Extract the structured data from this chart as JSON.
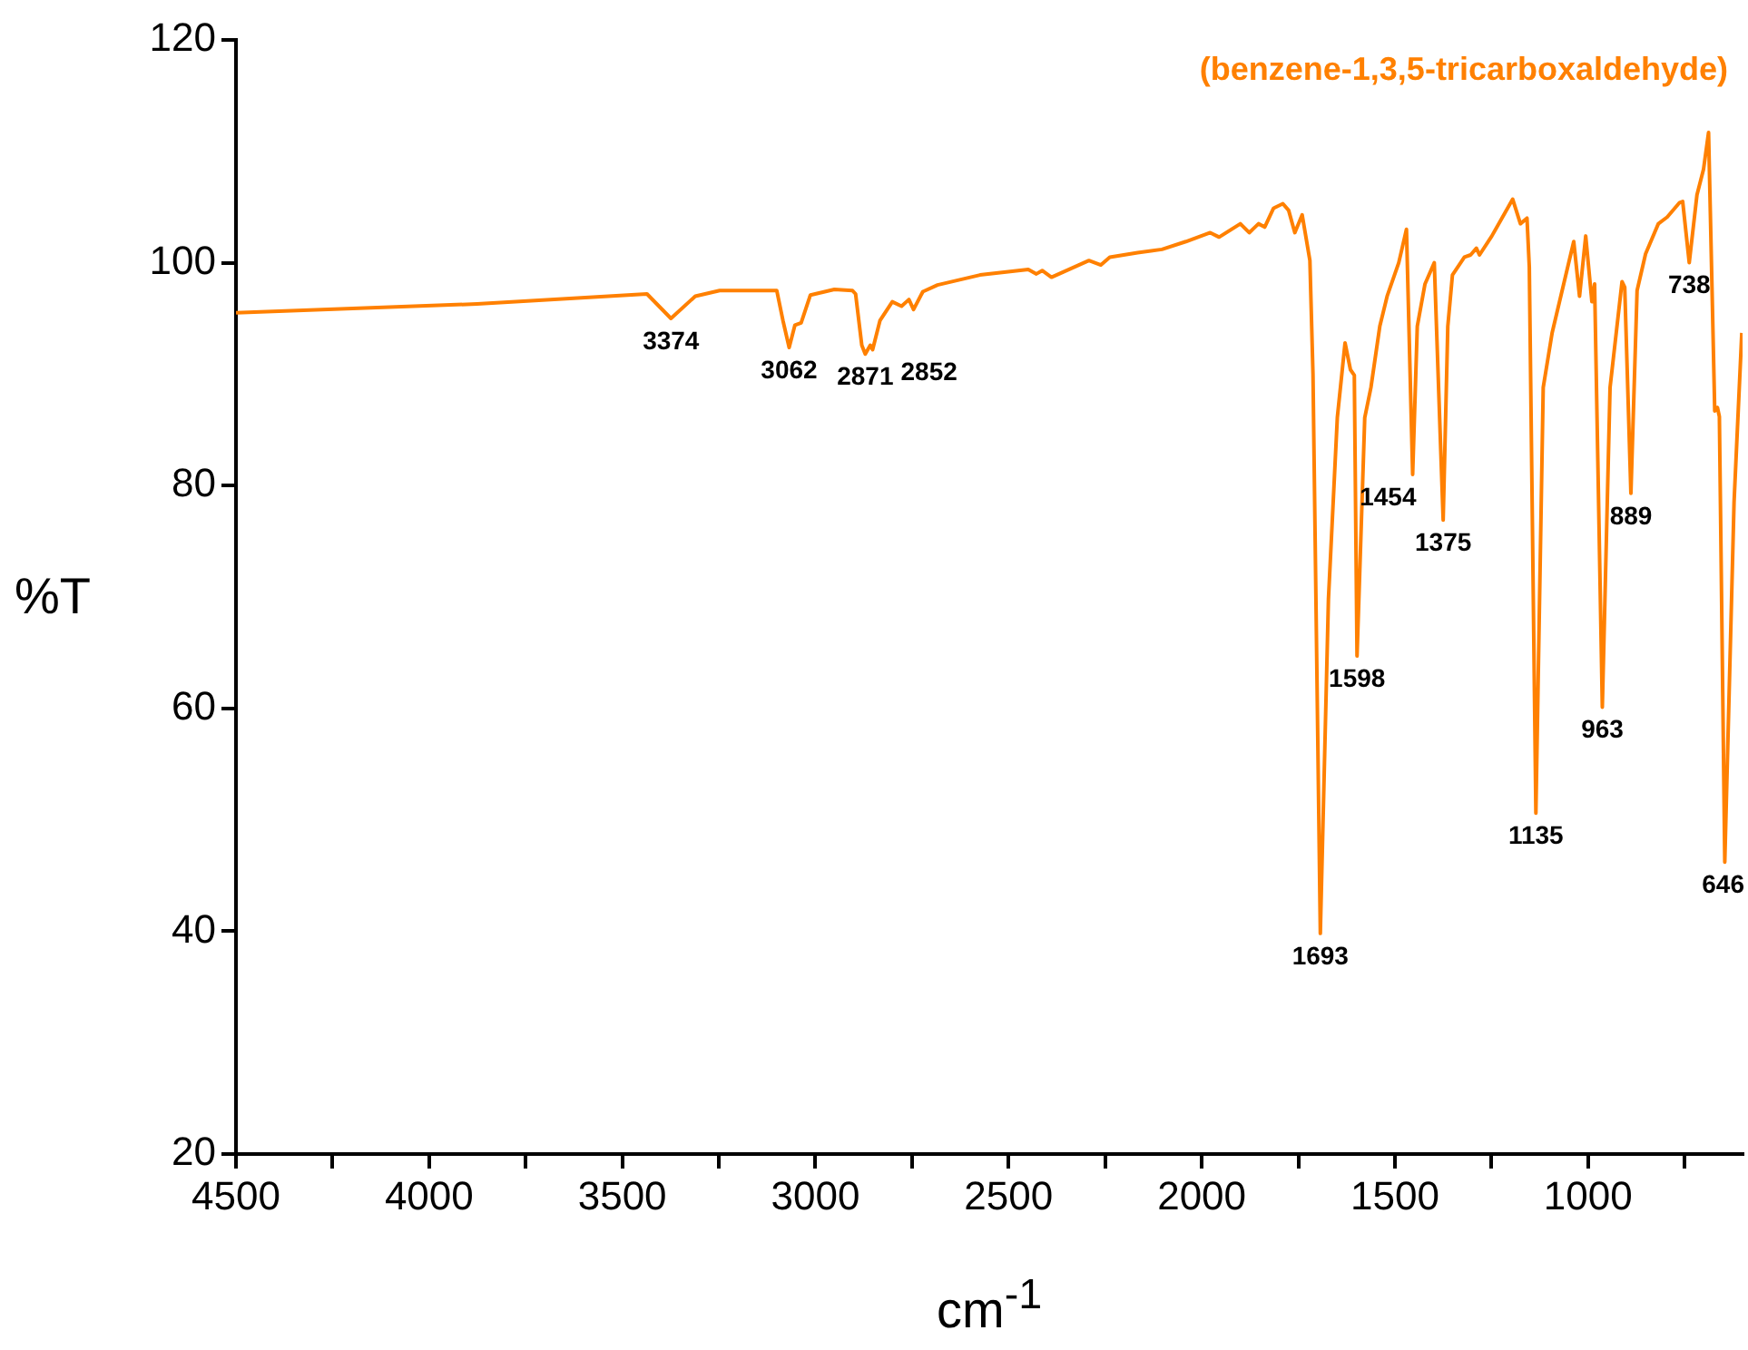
{
  "chart_data": {
    "type": "line",
    "xlabel": "cm$^{-1}$",
    "ylabel": "%T",
    "xlim": [
      4500,
      600
    ],
    "ylim": [
      20,
      120
    ],
    "xticks": [
      4500,
      {
        "value": 4250,
        "label": null
      },
      4000,
      {
        "value": 3750,
        "label": null
      },
      3500,
      {
        "value": 3250,
        "label": null
      },
      3000,
      {
        "value": 2750,
        "label": null
      },
      2500,
      {
        "value": 2250,
        "label": null
      },
      2000,
      {
        "value": 1750,
        "label": null
      },
      1500,
      {
        "value": 1250,
        "label": null
      },
      1000,
      {
        "value": 750,
        "label": null
      }
    ],
    "yticks": [
      20,
      40,
      60,
      80,
      100,
      120
    ],
    "grid": false,
    "marker": "none",
    "line_style": "solid",
    "series": [
      {
        "name": "(benzene-1,3,5-tricarboxaldehyde)",
        "color": "#ff8000",
        "x": [
          4500,
          3876,
          3436,
          3374,
          3311,
          3248,
          3100,
          3084,
          3068,
          3053,
          3037,
          3013,
          2951,
          2904,
          2896,
          2880,
          2871,
          2858,
          2852,
          2833,
          2801,
          2777,
          2758,
          2746,
          2722,
          2684,
          2574,
          2449,
          2428,
          2413,
          2389,
          2292,
          2261,
          2238,
          2166,
          2103,
          2041,
          1978,
          1955,
          1900,
          1877,
          1853,
          1837,
          1814,
          1790,
          1775,
          1759,
          1740,
          1720,
          1712,
          1693,
          1672,
          1649,
          1629,
          1615,
          1605,
          1598,
          1578,
          1562,
          1539,
          1520,
          1490,
          1470,
          1454,
          1442,
          1422,
          1398,
          1375,
          1363,
          1351,
          1320,
          1304,
          1289,
          1281,
          1249,
          1195,
          1175,
          1158,
          1152,
          1135,
          1116,
          1093,
          1037,
          1022,
          1006,
          990,
          983,
          963,
          943,
          912,
          905,
          889,
          873,
          851,
          818,
          795,
          763,
          755,
          738,
          718,
          701,
          688,
          672,
          665,
          660,
          646,
          622,
          602
        ],
        "values": [
          95.5,
          96.3,
          97.2,
          95.0,
          97.0,
          97.5,
          97.5,
          94.8,
          92.4,
          94.4,
          94.6,
          97.1,
          97.6,
          97.5,
          97.2,
          92.6,
          91.8,
          92.6,
          92.2,
          94.8,
          96.5,
          96.1,
          96.7,
          95.8,
          97.4,
          98.0,
          98.9,
          99.4,
          99.0,
          99.3,
          98.7,
          100.2,
          99.8,
          100.5,
          100.9,
          101.2,
          101.9,
          102.7,
          102.3,
          103.5,
          102.7,
          103.5,
          103.2,
          104.9,
          105.3,
          104.7,
          102.7,
          104.3,
          100.2,
          90.0,
          39.8,
          69.8,
          86.1,
          92.8,
          90.4,
          89.9,
          64.7,
          86.1,
          88.8,
          94.3,
          97.0,
          100.0,
          103.0,
          81.0,
          94.3,
          98.1,
          100.0,
          76.9,
          94.3,
          98.9,
          100.5,
          100.7,
          101.3,
          100.7,
          102.4,
          105.7,
          103.5,
          104.0,
          99.6,
          50.6,
          88.8,
          93.7,
          101.9,
          97.0,
          102.4,
          96.5,
          98.1,
          60.1,
          88.8,
          98.3,
          97.8,
          79.3,
          97.5,
          100.8,
          103.5,
          104.1,
          105.4,
          105.5,
          100.0,
          106.1,
          108.4,
          111.7,
          86.7,
          87.0,
          86.2,
          46.2,
          78.5,
          93.7
        ]
      }
    ],
    "annotations": [
      {
        "text": "3374",
        "x": 3374,
        "y": 95.0
      },
      {
        "text": "3062",
        "x": 3068,
        "y": 92.4
      },
      {
        "text": "2871",
        "x": 2871,
        "y": 91.8
      },
      {
        "text": "2852",
        "x": 2852,
        "y": 92.2
      },
      {
        "text": "1693",
        "x": 1693,
        "y": 39.8
      },
      {
        "text": "1598",
        "x": 1598,
        "y": 64.7
      },
      {
        "text": "1454",
        "x": 1454,
        "y": 81.0
      },
      {
        "text": "1375",
        "x": 1375,
        "y": 76.9
      },
      {
        "text": "1135",
        "x": 1135,
        "y": 50.6
      },
      {
        "text": "963",
        "x": 963,
        "y": 60.1
      },
      {
        "text": "889",
        "x": 889,
        "y": 79.3
      },
      {
        "text": "738",
        "x": 738,
        "y": 100.0
      },
      {
        "text": "646",
        "x": 646,
        "y": 46.2
      }
    ]
  }
}
